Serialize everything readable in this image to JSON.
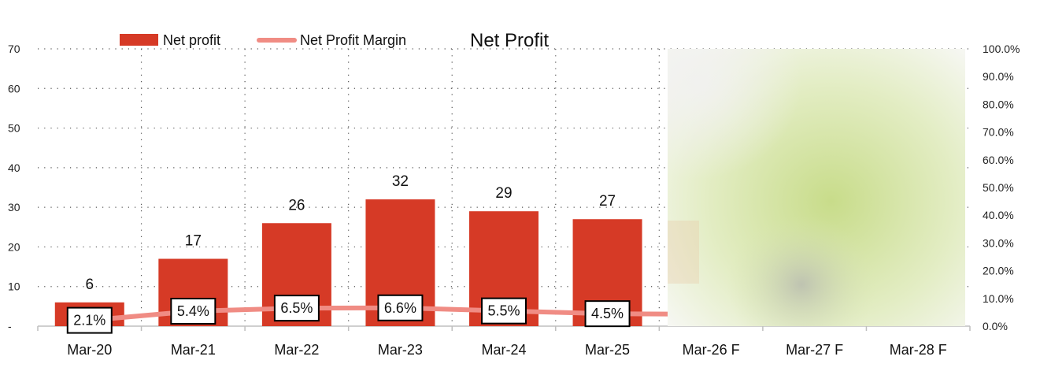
{
  "chart_data": {
    "type": "bar",
    "title": "Net Profit",
    "categories": [
      "Mar-20",
      "Mar-21",
      "Mar-22",
      "Mar-23",
      "Mar-24",
      "Mar-25",
      "Mar-26 F",
      "Mar-27 F",
      "Mar-28 F"
    ],
    "series": [
      {
        "name": "Net profit",
        "type": "bar",
        "axis": "left",
        "color": "#d63a26",
        "values": [
          6,
          17,
          26,
          32,
          29,
          27,
          null,
          null,
          null
        ],
        "labels": [
          "6",
          "17",
          "26",
          "32",
          "29",
          "27",
          null,
          null,
          null
        ]
      },
      {
        "name": "Net Profit Margin",
        "type": "line",
        "axis": "right",
        "color": "#f08c84",
        "values": [
          2.1,
          5.4,
          6.5,
          6.6,
          5.5,
          4.5,
          null,
          null,
          null
        ],
        "labels": [
          "2.1%",
          "5.4%",
          "6.5%",
          "6.6%",
          "5.5%",
          "4.5%",
          null,
          null,
          null
        ]
      }
    ],
    "y_left": {
      "ylim": [
        0,
        70
      ],
      "ticks": [
        "-",
        "10",
        "20",
        "30",
        "40",
        "50",
        "60",
        "70"
      ]
    },
    "y_right": {
      "ylim": [
        0,
        100
      ],
      "ticks": [
        "0.0%",
        "10.0%",
        "20.0%",
        "30.0%",
        "40.0%",
        "50.0%",
        "60.0%",
        "70.0%",
        "80.0%",
        "90.0%",
        "100.0%"
      ]
    },
    "grid": "dotted",
    "legend": "top-left",
    "obscured_region": "Mar-26 F to Mar-28 F (blurred)"
  }
}
